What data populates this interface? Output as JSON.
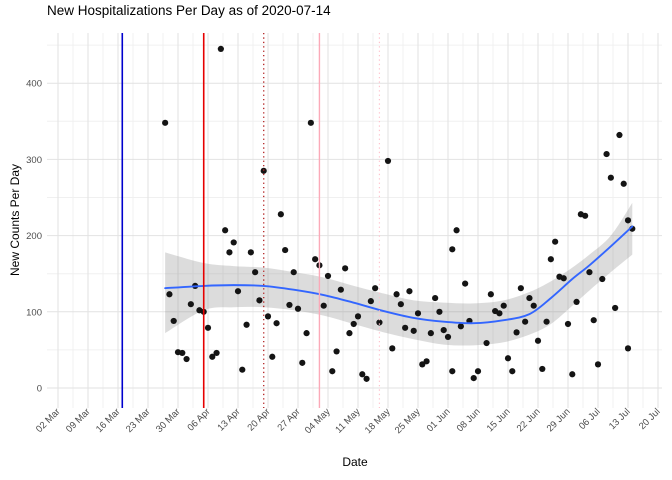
{
  "chart_data": {
    "type": "scatter",
    "title": "New Hospitalizations Per Day as of 2020-07-14",
    "xlabel": "Date",
    "ylabel": "New Counts Per Day",
    "grid": "on",
    "legend": "none",
    "background": "#FFFFFF",
    "point_color": "#141414",
    "major_grid_color": "#E2E2E2",
    "minor_grid_color": "#F0F0F0",
    "tick_label_color": "#4D4D4D",
    "y_ticks": [
      0,
      100,
      200,
      300,
      400
    ],
    "ylim": [
      -26,
      466
    ],
    "x_ticks": [
      {
        "date": "03-02",
        "label": "02 Mar"
      },
      {
        "date": "03-09",
        "label": "09 Mar"
      },
      {
        "date": "03-16",
        "label": "16 Mar"
      },
      {
        "date": "03-23",
        "label": "23 Mar"
      },
      {
        "date": "03-30",
        "label": "30 Mar"
      },
      {
        "date": "04-06",
        "label": "06 Apr"
      },
      {
        "date": "04-13",
        "label": "13 Apr"
      },
      {
        "date": "04-20",
        "label": "20 Apr"
      },
      {
        "date": "04-27",
        "label": "27 Apr"
      },
      {
        "date": "05-04",
        "label": "04 May"
      },
      {
        "date": "05-11",
        "label": "11 May"
      },
      {
        "date": "05-18",
        "label": "18 May"
      },
      {
        "date": "05-25",
        "label": "25 May"
      },
      {
        "date": "06-01",
        "label": "01 Jun"
      },
      {
        "date": "06-08",
        "label": "08 Jun"
      },
      {
        "date": "06-15",
        "label": "15 Jun"
      },
      {
        "date": "06-22",
        "label": "22 Jun"
      },
      {
        "date": "06-29",
        "label": "29 Jun"
      },
      {
        "date": "07-06",
        "label": "06 Jul"
      },
      {
        "date": "07-13",
        "label": "13 Jul"
      },
      {
        "date": "07-20",
        "label": "20 Jul"
      }
    ],
    "vlines": [
      {
        "date": "03-17",
        "color": "#0000CD",
        "style": "solid",
        "width": 1.6
      },
      {
        "date": "04-05",
        "color": "#E60000",
        "style": "solid",
        "width": 1.6
      },
      {
        "date": "04-19",
        "color": "#B22222",
        "style": "dotted",
        "width": 1.3
      },
      {
        "date": "05-02",
        "color": "#FBA9B8",
        "style": "solid",
        "width": 1.4
      },
      {
        "date": "05-16",
        "color": "#FFC3CD",
        "style": "dotted",
        "width": 1.2
      }
    ],
    "smooth": {
      "color": "#3366FF",
      "points": [
        [
          "03-27",
          131
        ],
        [
          "04-05",
          134
        ],
        [
          "04-12",
          135
        ],
        [
          "04-19",
          134
        ],
        [
          "04-26",
          129
        ],
        [
          "05-03",
          122
        ],
        [
          "05-10",
          112
        ],
        [
          "05-17",
          101
        ],
        [
          "05-24",
          92
        ],
        [
          "05-31",
          87
        ],
        [
          "06-07",
          85
        ],
        [
          "06-14",
          89
        ],
        [
          "06-20",
          97
        ],
        [
          "06-25",
          118
        ],
        [
          "06-30",
          143
        ],
        [
          "07-04",
          161
        ],
        [
          "07-09",
          186
        ],
        [
          "07-14",
          212
        ]
      ]
    },
    "ribbon": {
      "fill": "#8C8C8C",
      "opacity": 0.3,
      "upper": [
        [
          "03-27",
          178
        ],
        [
          "04-05",
          164
        ],
        [
          "04-12",
          160
        ],
        [
          "04-19",
          158
        ],
        [
          "04-26",
          152
        ],
        [
          "05-03",
          145
        ],
        [
          "05-10",
          134
        ],
        [
          "05-17",
          124
        ],
        [
          "05-24",
          115
        ],
        [
          "05-31",
          112
        ],
        [
          "06-07",
          111
        ],
        [
          "06-14",
          115
        ],
        [
          "06-20",
          126
        ],
        [
          "06-25",
          140
        ],
        [
          "06-30",
          158
        ],
        [
          "07-04",
          175
        ],
        [
          "07-09",
          200
        ],
        [
          "07-14",
          243
        ]
      ],
      "lower": [
        [
          "03-27",
          72
        ],
        [
          "04-05",
          102
        ],
        [
          "04-12",
          106
        ],
        [
          "04-19",
          106
        ],
        [
          "04-26",
          102
        ],
        [
          "05-03",
          95
        ],
        [
          "05-10",
          84
        ],
        [
          "05-17",
          73
        ],
        [
          "05-24",
          64
        ],
        [
          "05-31",
          57
        ],
        [
          "06-07",
          56
        ],
        [
          "06-14",
          60
        ],
        [
          "06-20",
          70
        ],
        [
          "06-25",
          84
        ],
        [
          "06-30",
          108
        ],
        [
          "07-04",
          128
        ],
        [
          "07-09",
          152
        ],
        [
          "07-14",
          175
        ]
      ]
    },
    "points": [
      [
        "03-27",
        348
      ],
      [
        "03-28",
        123
      ],
      [
        "03-29",
        88
      ],
      [
        "03-30",
        47
      ],
      [
        "03-31",
        46
      ],
      [
        "04-01",
        38
      ],
      [
        "04-02",
        110
      ],
      [
        "04-03",
        134
      ],
      [
        "04-04",
        102
      ],
      [
        "04-05",
        100
      ],
      [
        "04-06",
        79
      ],
      [
        "04-07",
        41
      ],
      [
        "04-08",
        46
      ],
      [
        "04-09",
        445
      ],
      [
        "04-10",
        207
      ],
      [
        "04-11",
        178
      ],
      [
        "04-12",
        191
      ],
      [
        "04-13",
        127
      ],
      [
        "04-14",
        24
      ],
      [
        "04-15",
        83
      ],
      [
        "04-16",
        178
      ],
      [
        "04-17",
        152
      ],
      [
        "04-18",
        115
      ],
      [
        "04-19",
        285
      ],
      [
        "04-20",
        94
      ],
      [
        "04-21",
        41
      ],
      [
        "04-22",
        85
      ],
      [
        "04-23",
        228
      ],
      [
        "04-24",
        181
      ],
      [
        "04-25",
        109
      ],
      [
        "04-26",
        152
      ],
      [
        "04-27",
        104
      ],
      [
        "04-28",
        33
      ],
      [
        "04-29",
        72
      ],
      [
        "04-30",
        348
      ],
      [
        "05-01",
        169
      ],
      [
        "05-02",
        161
      ],
      [
        "05-03",
        108
      ],
      [
        "05-04",
        147
      ],
      [
        "05-05",
        22
      ],
      [
        "05-06",
        48
      ],
      [
        "05-07",
        129
      ],
      [
        "05-08",
        157
      ],
      [
        "05-09",
        72
      ],
      [
        "05-10",
        84
      ],
      [
        "05-11",
        94
      ],
      [
        "05-12",
        18
      ],
      [
        "05-13",
        12
      ],
      [
        "05-14",
        114
      ],
      [
        "05-15",
        131
      ],
      [
        "05-16",
        86
      ],
      [
        "05-18",
        298
      ],
      [
        "05-19",
        52
      ],
      [
        "05-20",
        123
      ],
      [
        "05-21",
        110
      ],
      [
        "05-22",
        79
      ],
      [
        "05-23",
        127
      ],
      [
        "05-24",
        75
      ],
      [
        "05-25",
        98
      ],
      [
        "05-26",
        31
      ],
      [
        "05-27",
        35
      ],
      [
        "05-28",
        72
      ],
      [
        "05-29",
        118
      ],
      [
        "05-30",
        100
      ],
      [
        "05-31",
        76
      ],
      [
        "06-01",
        67
      ],
      [
        "06-02",
        22
      ],
      [
        "06-02",
        182
      ],
      [
        "06-03",
        207
      ],
      [
        "06-04",
        81
      ],
      [
        "06-05",
        137
      ],
      [
        "06-06",
        88
      ],
      [
        "06-07",
        13
      ],
      [
        "06-08",
        22
      ],
      [
        "06-10",
        59
      ],
      [
        "06-11",
        123
      ],
      [
        "06-12",
        101
      ],
      [
        "06-13",
        98
      ],
      [
        "06-14",
        108
      ],
      [
        "06-15",
        39
      ],
      [
        "06-16",
        22
      ],
      [
        "06-17",
        73
      ],
      [
        "06-18",
        131
      ],
      [
        "06-19",
        87
      ],
      [
        "06-20",
        118
      ],
      [
        "06-21",
        108
      ],
      [
        "06-22",
        62
      ],
      [
        "06-23",
        25
      ],
      [
        "06-24",
        87
      ],
      [
        "06-25",
        169
      ],
      [
        "06-26",
        192
      ],
      [
        "06-27",
        146
      ],
      [
        "06-28",
        144
      ],
      [
        "06-29",
        84
      ],
      [
        "06-30",
        18
      ],
      [
        "07-01",
        113
      ],
      [
        "07-02",
        228
      ],
      [
        "07-03",
        226
      ],
      [
        "07-04",
        152
      ],
      [
        "07-05",
        89
      ],
      [
        "07-06",
        31
      ],
      [
        "07-07",
        143
      ],
      [
        "07-08",
        307
      ],
      [
        "07-09",
        276
      ],
      [
        "07-10",
        105
      ],
      [
        "07-11",
        332
      ],
      [
        "07-12",
        268
      ],
      [
        "07-13",
        52
      ],
      [
        "07-13",
        220
      ],
      [
        "07-14",
        209
      ]
    ]
  }
}
